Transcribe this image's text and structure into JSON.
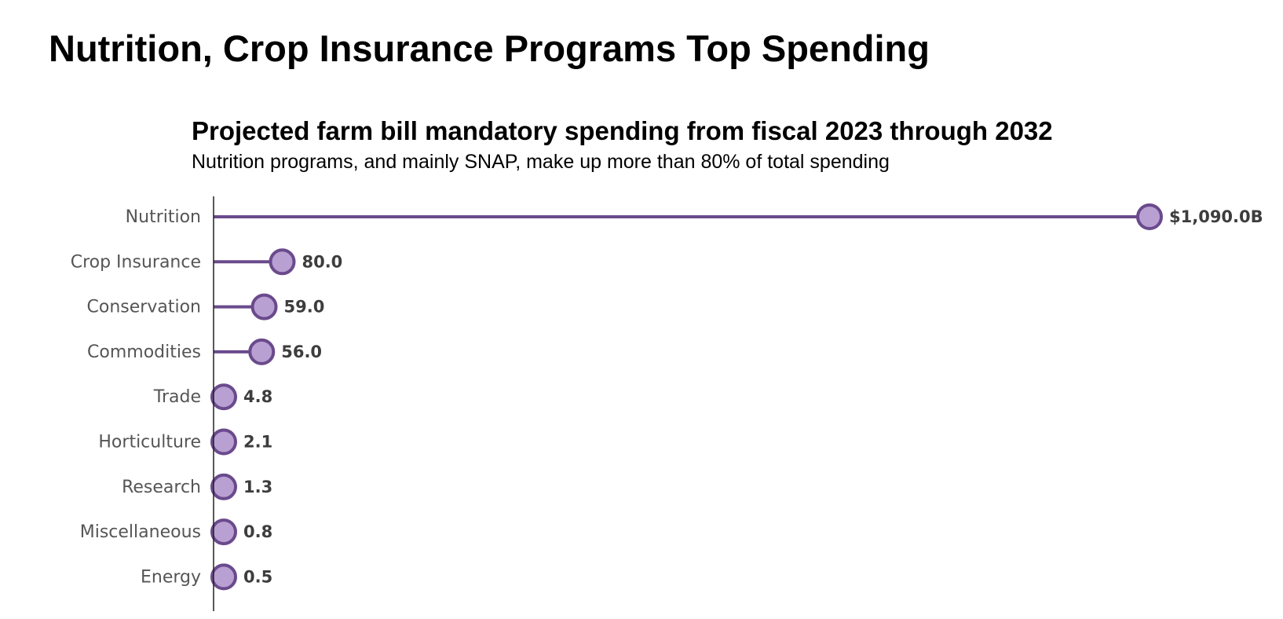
{
  "heading": "Nutrition, Crop Insurance Programs Top Spending",
  "colors": {
    "stem": "#6a4a8c",
    "dot_fill": "#b9a0d2",
    "dot_stroke": "#6a4a8c",
    "axis": "#222222"
  },
  "chart_data": {
    "type": "lollipop",
    "title": "Projected farm bill mandatory spending from fiscal 2023 through 2032",
    "subtitle": "Nutrition programs, and mainly SNAP, make up more than 80% of total spending",
    "orientation": "horizontal",
    "categories": [
      "Nutrition",
      "Crop Insurance",
      "Conservation",
      "Commodities",
      "Trade",
      "Horticulture",
      "Research",
      "Miscellaneous",
      "Energy"
    ],
    "values": [
      1090.0,
      80.0,
      59.0,
      56.0,
      4.8,
      2.1,
      1.3,
      0.8,
      0.5
    ],
    "value_labels": [
      "$1,090.0B",
      "80.0",
      "59.0",
      "56.0",
      "4.8",
      "2.1",
      "1.3",
      "0.8",
      "0.5"
    ],
    "unit": "billion dollars",
    "xlim": [
      0,
      1090
    ],
    "grid": false,
    "legend": "none"
  }
}
